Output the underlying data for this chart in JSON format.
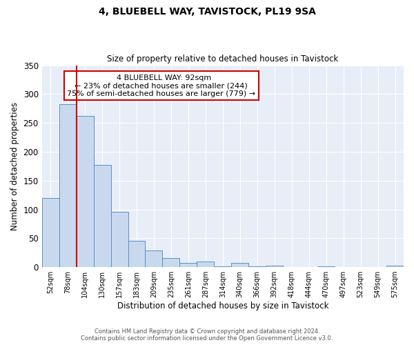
{
  "title": "4, BLUEBELL WAY, TAVISTOCK, PL19 9SA",
  "subtitle": "Size of property relative to detached houses in Tavistock",
  "xlabel": "Distribution of detached houses by size in Tavistock",
  "ylabel": "Number of detached properties",
  "bar_labels": [
    "52sqm",
    "78sqm",
    "104sqm",
    "130sqm",
    "157sqm",
    "183sqm",
    "209sqm",
    "235sqm",
    "261sqm",
    "287sqm",
    "314sqm",
    "340sqm",
    "366sqm",
    "392sqm",
    "418sqm",
    "444sqm",
    "470sqm",
    "497sqm",
    "523sqm",
    "549sqm",
    "575sqm"
  ],
  "bar_values": [
    120,
    282,
    262,
    177,
    96,
    45,
    29,
    16,
    7,
    10,
    1,
    7,
    1,
    3,
    0,
    0,
    1,
    0,
    0,
    0,
    2
  ],
  "bar_color": "#c9d9ed",
  "bar_edge_color": "#5b8ec4",
  "ylim": [
    0,
    350
  ],
  "yticks": [
    0,
    50,
    100,
    150,
    200,
    250,
    300,
    350
  ],
  "annotation_title": "4 BLUEBELL WAY: 92sqm",
  "annotation_line1": "← 23% of detached houses are smaller (244)",
  "annotation_line2": "75% of semi-detached houses are larger (779) →",
  "footer_line1": "Contains HM Land Registry data © Crown copyright and database right 2024.",
  "footer_line2": "Contains public sector information licensed under the Open Government Licence v3.0.",
  "fig_background_color": "#ffffff",
  "plot_bg_color": "#e8eef7",
  "annotation_box_color": "#ffffff",
  "annotation_box_edge": "#cc0000",
  "red_line_color": "#cc0000",
  "grid_color": "#ffffff"
}
